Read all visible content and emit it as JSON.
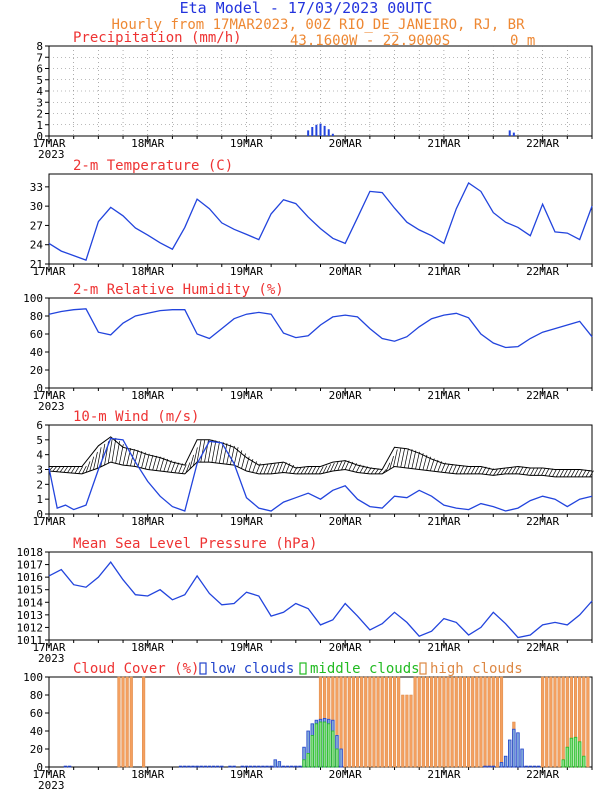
{
  "header": {
    "line1": "Eta Model - 17/03/2023 00UTC",
    "line2": "Hourly from 17MAR2023, 00Z  RIO_DE_JANEIRO, RJ, BR",
    "coords": "43.1600W - 22.9000S",
    "elevation": "0 m"
  },
  "colors": {
    "title_blue": "#2233dd",
    "header_orange": "#ee8833",
    "panel_red": "#ee3333",
    "line_blue": "#2244dd",
    "low_cloud": "#2244cc",
    "mid_cloud": "#22bb22",
    "high_cloud": "#f4a060",
    "high_cloud_edge": "#dd8844"
  },
  "x_axis": {
    "hours_total": 132,
    "tick_labels": [
      "17MAR",
      "18MAR",
      "19MAR",
      "20MAR",
      "21MAR",
      "22MAR"
    ],
    "tick_hours": [
      0,
      24,
      48,
      72,
      96,
      120
    ],
    "year_label": "2023"
  },
  "chart_data": [
    {
      "id": "precip",
      "type": "bar",
      "title": "Precipitation (mm/h)",
      "ylim": [
        0,
        8
      ],
      "yticks": [
        0,
        1,
        2,
        3,
        4,
        5,
        6,
        7,
        8
      ],
      "grid": true,
      "x": [
        63,
        64,
        65,
        66,
        67,
        68,
        69,
        112,
        113
      ],
      "values": [
        0.5,
        0.8,
        1.0,
        1.1,
        0.9,
        0.6,
        0.2,
        0.5,
        0.3
      ]
    },
    {
      "id": "temp",
      "type": "line",
      "title": "2-m Temperature (C)",
      "ylim": [
        21,
        35
      ],
      "yticks": [
        21,
        24,
        27,
        30,
        33
      ],
      "x": [
        0,
        3,
        6,
        9,
        12,
        15,
        18,
        21,
        24,
        27,
        30,
        33,
        36,
        39,
        42,
        45,
        48,
        51,
        54,
        57,
        60,
        63,
        66,
        69,
        72,
        75,
        78,
        81,
        84,
        87,
        90,
        93,
        96,
        99,
        102,
        105,
        108,
        111,
        114,
        117,
        120,
        123,
        126,
        129,
        132
      ],
      "values": [
        24.2,
        23.0,
        22.3,
        21.6,
        27.6,
        29.8,
        28.5,
        26.6,
        25.5,
        24.3,
        23.3,
        26.7,
        31.1,
        29.6,
        27.4,
        26.4,
        25.6,
        24.8,
        28.8,
        31.0,
        30.4,
        28.3,
        26.5,
        25.0,
        24.2,
        28.2,
        32.3,
        32.1,
        29.7,
        27.5,
        26.3,
        25.4,
        24.2,
        29.6,
        33.6,
        32.3,
        29.0,
        27.5,
        26.7,
        25.4,
        30.3,
        26.0,
        25.8,
        24.8,
        30.0
      ]
    },
    {
      "id": "rh",
      "type": "line",
      "title": "2-m Relative Humidity (%)",
      "ylim": [
        0,
        100
      ],
      "yticks": [
        0,
        20,
        40,
        60,
        80,
        100
      ],
      "x": [
        0,
        3,
        6,
        9,
        12,
        15,
        18,
        21,
        24,
        27,
        30,
        33,
        36,
        39,
        42,
        45,
        48,
        51,
        54,
        57,
        60,
        63,
        66,
        69,
        72,
        75,
        78,
        81,
        84,
        87,
        90,
        93,
        96,
        99,
        102,
        105,
        108,
        111,
        114,
        117,
        120,
        123,
        126,
        129,
        132
      ],
      "values": [
        82,
        85,
        87,
        88,
        62,
        59,
        72,
        80,
        83,
        86,
        87,
        87,
        60,
        55,
        66,
        77,
        82,
        84,
        82,
        61,
        56,
        58,
        70,
        79,
        81,
        79,
        66,
        55,
        52,
        57,
        68,
        77,
        81,
        83,
        78,
        60,
        50,
        45,
        46,
        55,
        62,
        66,
        70,
        74,
        57
      ]
    },
    {
      "id": "wind",
      "type": "line",
      "title": "10-m Wind (m/s)",
      "ylim": [
        0,
        6
      ],
      "yticks": [
        0,
        1,
        2,
        3,
        4,
        5,
        6
      ],
      "note": "blue line = wind speed; black band = direction barbs",
      "speed": {
        "x": [
          0,
          2,
          4,
          6,
          9,
          12,
          15,
          18,
          21,
          24,
          27,
          30,
          33,
          36,
          39,
          42,
          45,
          48,
          51,
          54,
          57,
          60,
          63,
          66,
          69,
          72,
          75,
          78,
          81,
          84,
          87,
          90,
          93,
          96,
          99,
          102,
          105,
          108,
          111,
          114,
          117,
          120,
          123,
          126,
          129,
          132
        ],
        "values": [
          3.1,
          0.4,
          0.6,
          0.3,
          0.6,
          3.0,
          5.1,
          5.0,
          3.5,
          2.2,
          1.2,
          0.5,
          0.2,
          3.4,
          4.9,
          4.8,
          3.4,
          1.1,
          0.4,
          0.2,
          0.8,
          1.1,
          1.4,
          1.0,
          1.6,
          1.9,
          1.0,
          0.5,
          0.4,
          1.2,
          1.1,
          1.6,
          1.2,
          0.6,
          0.4,
          0.3,
          0.7,
          0.5,
          0.2,
          0.4,
          0.9,
          1.2,
          1.0,
          0.5,
          1.0,
          1.2
        ]
      },
      "barb_top": {
        "x": [
          0,
          4,
          8,
          12,
          15,
          18,
          21,
          24,
          27,
          30,
          33,
          36,
          39,
          42,
          45,
          48,
          51,
          54,
          57,
          60,
          63,
          66,
          69,
          72,
          75,
          78,
          81,
          84,
          87,
          90,
          93,
          96,
          99,
          102,
          105,
          108,
          111,
          114,
          117,
          120,
          123,
          126,
          129,
          132
        ],
        "values": [
          3.2,
          3.2,
          3.2,
          4.6,
          5.2,
          4.5,
          4.3,
          4.0,
          3.8,
          3.5,
          3.3,
          5.0,
          5.0,
          4.8,
          4.5,
          3.8,
          3.3,
          3.4,
          3.5,
          3.1,
          3.2,
          3.2,
          3.5,
          3.6,
          3.3,
          3.1,
          3.0,
          4.5,
          4.4,
          4.1,
          3.7,
          3.4,
          3.3,
          3.2,
          3.2,
          3.0,
          3.1,
          3.2,
          3.1,
          3.1,
          3.0,
          3.0,
          3.0,
          2.9
        ]
      },
      "barb_bottom": {
        "x": [
          0,
          4,
          8,
          12,
          15,
          18,
          21,
          24,
          27,
          30,
          33,
          36,
          39,
          42,
          45,
          48,
          51,
          54,
          57,
          60,
          63,
          66,
          69,
          72,
          75,
          78,
          81,
          84,
          87,
          90,
          93,
          96,
          99,
          102,
          105,
          108,
          111,
          114,
          117,
          120,
          123,
          126,
          129,
          132
        ],
        "values": [
          2.9,
          2.8,
          2.7,
          3.1,
          3.5,
          3.3,
          3.2,
          3.0,
          2.9,
          2.8,
          2.7,
          3.5,
          3.5,
          3.4,
          3.3,
          2.9,
          2.7,
          2.7,
          2.8,
          2.7,
          2.7,
          2.7,
          2.9,
          3.0,
          2.8,
          2.7,
          2.7,
          3.2,
          3.1,
          3.0,
          2.9,
          2.8,
          2.7,
          2.7,
          2.7,
          2.6,
          2.7,
          2.7,
          2.6,
          2.6,
          2.5,
          2.5,
          2.5,
          2.5
        ]
      }
    },
    {
      "id": "mslp",
      "type": "line",
      "title": "Mean Sea Level Pressure (hPa)",
      "ylim": [
        1011,
        1018
      ],
      "yticks": [
        1011,
        1012,
        1013,
        1014,
        1015,
        1016,
        1017,
        1018
      ],
      "x": [
        0,
        3,
        6,
        9,
        12,
        15,
        18,
        21,
        24,
        27,
        30,
        33,
        36,
        39,
        42,
        45,
        48,
        51,
        54,
        57,
        60,
        63,
        66,
        69,
        72,
        75,
        78,
        81,
        84,
        87,
        90,
        93,
        96,
        99,
        102,
        105,
        108,
        111,
        114,
        117,
        120,
        123,
        126,
        129,
        132
      ],
      "values": [
        1016.1,
        1016.6,
        1015.4,
        1015.2,
        1016.0,
        1017.2,
        1015.8,
        1014.6,
        1014.5,
        1015.0,
        1014.2,
        1014.6,
        1016.1,
        1014.7,
        1013.8,
        1013.9,
        1014.8,
        1014.5,
        1012.9,
        1013.2,
        1013.9,
        1013.5,
        1012.2,
        1012.6,
        1013.9,
        1012.9,
        1011.8,
        1012.3,
        1013.2,
        1012.4,
        1011.3,
        1011.7,
        1012.7,
        1012.4,
        1011.4,
        1012.0,
        1013.2,
        1012.3,
        1011.2,
        1011.4,
        1012.2,
        1012.4,
        1012.2,
        1013.0,
        1014.1
      ]
    },
    {
      "id": "cloud",
      "type": "bar",
      "title": "Cloud Cover (%)",
      "legend": [
        "low clouds",
        "middle clouds",
        "high clouds"
      ],
      "ylim": [
        0,
        100
      ],
      "yticks": [
        0,
        20,
        40,
        60,
        80,
        100
      ],
      "high": {
        "x": [
          17,
          18,
          19,
          20,
          23,
          66,
          67,
          68,
          69,
          70,
          71,
          72,
          73,
          74,
          75,
          76,
          77,
          78,
          79,
          80,
          81,
          82,
          83,
          84,
          85,
          86,
          87,
          88,
          89,
          90,
          91,
          92,
          93,
          94,
          95,
          96,
          97,
          98,
          99,
          100,
          101,
          102,
          103,
          104,
          105,
          106,
          107,
          108,
          109,
          110,
          113,
          120,
          121,
          122,
          123,
          124,
          125,
          126,
          127,
          128,
          129,
          130,
          131
        ],
        "values": [
          100,
          100,
          100,
          100,
          100,
          100,
          100,
          100,
          100,
          100,
          100,
          100,
          100,
          100,
          100,
          100,
          100,
          100,
          100,
          100,
          100,
          100,
          100,
          100,
          100,
          80,
          80,
          80,
          100,
          100,
          100,
          100,
          100,
          100,
          100,
          100,
          100,
          100,
          100,
          100,
          100,
          100,
          100,
          100,
          100,
          100,
          100,
          100,
          100,
          100,
          50,
          100,
          100,
          100,
          100,
          100,
          100,
          100,
          100,
          100,
          100,
          100,
          100
        ]
      },
      "low": {
        "x": [
          4,
          5,
          32,
          33,
          34,
          35,
          36,
          37,
          38,
          39,
          40,
          41,
          42,
          44,
          45,
          47,
          48,
          49,
          50,
          51,
          52,
          53,
          54,
          55,
          56,
          57,
          58,
          59,
          60,
          61,
          62,
          63,
          64,
          65,
          66,
          67,
          68,
          69,
          70,
          71,
          106,
          107,
          108,
          110,
          111,
          112,
          113,
          114,
          115,
          116,
          117,
          118,
          119
        ],
        "values": [
          1,
          1,
          1,
          1,
          1,
          1,
          1,
          1,
          1,
          1,
          1,
          1,
          1,
          1,
          1,
          1,
          1,
          1,
          1,
          1,
          1,
          1,
          1,
          1,
          1,
          1,
          1,
          1,
          1,
          1,
          1,
          1,
          1,
          1,
          1,
          1,
          1,
          1,
          1,
          1,
          1,
          1,
          1,
          1,
          1,
          1,
          1,
          1,
          1,
          1,
          1,
          1,
          1
        ]
      },
      "low_main": {
        "x": [
          55,
          56,
          62,
          63,
          64,
          65,
          66,
          67,
          68,
          69,
          70,
          71,
          110,
          111,
          112,
          113,
          114,
          115
        ],
        "values": [
          8,
          6,
          22,
          40,
          48,
          52,
          53,
          54,
          53,
          52,
          35,
          20,
          5,
          12,
          30,
          42,
          38,
          20
        ]
      },
      "mid": {
        "x": [
          62,
          63,
          64,
          65,
          66,
          67,
          68,
          69,
          70,
          125,
          126,
          127,
          128,
          129,
          130
        ],
        "values": [
          8,
          15,
          35,
          48,
          50,
          50,
          48,
          40,
          20,
          8,
          22,
          32,
          33,
          28,
          12
        ]
      }
    }
  ]
}
